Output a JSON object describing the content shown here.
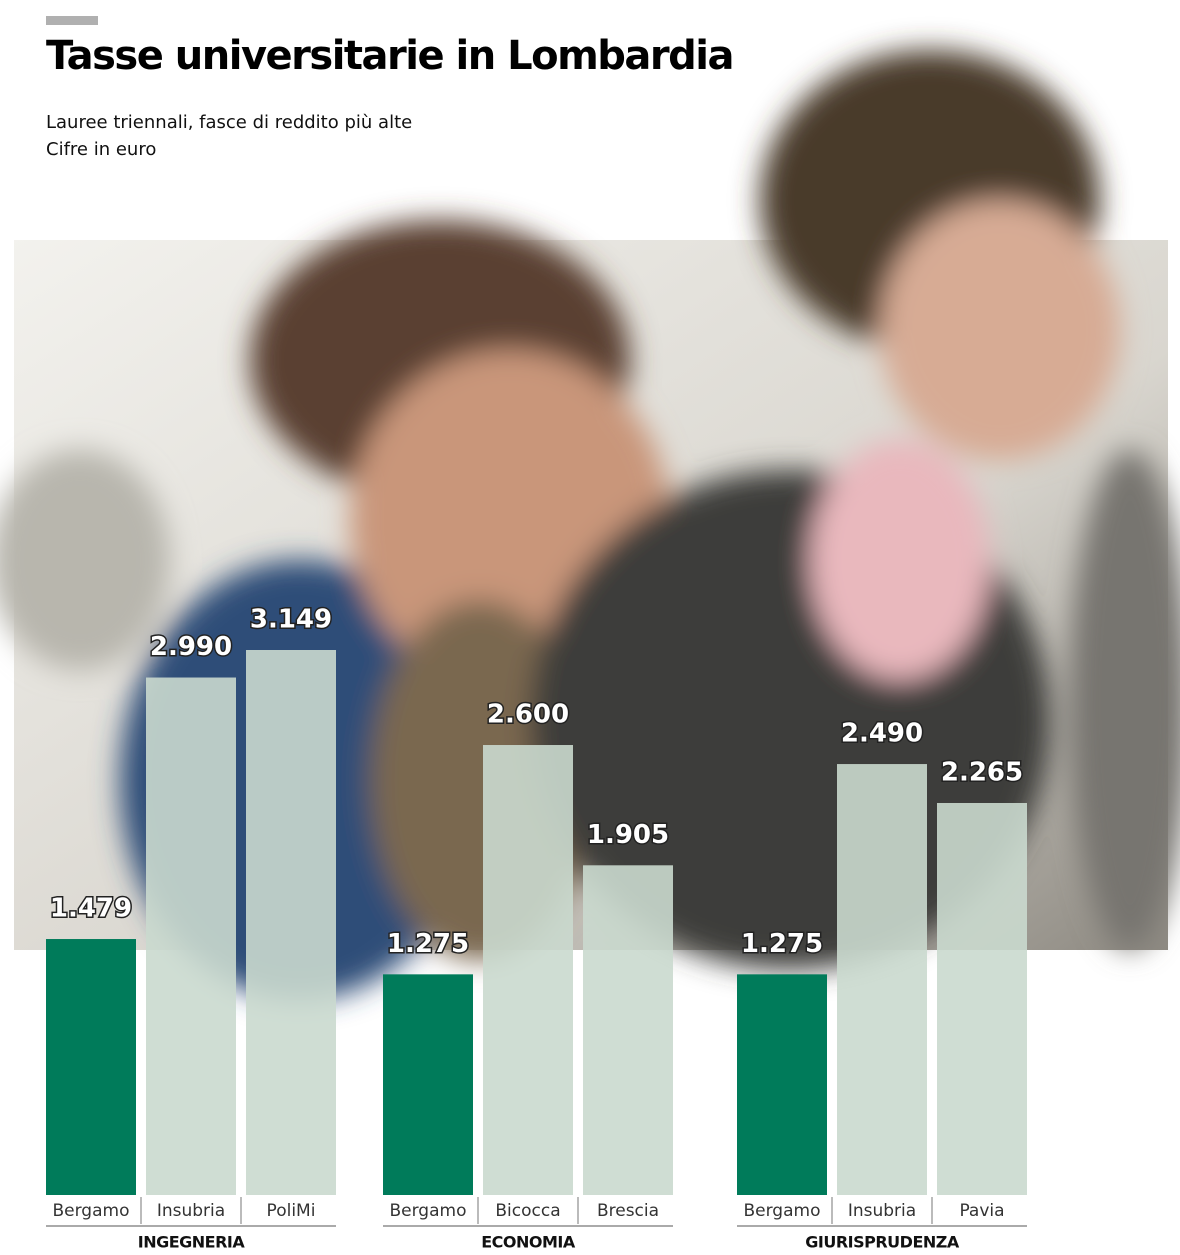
{
  "chart_data": {
    "type": "bar",
    "title": "Tasse universitarie in Lombardia",
    "subtitle": [
      "Lauree triennali, fasce di reddito più alte",
      "Cifre in  euro"
    ],
    "groups": [
      {
        "name": "INGEGNERIA",
        "categories": [
          "Bergamo",
          "Insubria",
          "PoliMi"
        ],
        "values": [
          1479,
          2990,
          3149
        ],
        "value_labels": [
          "1.479",
          "2.990",
          "3.149"
        ],
        "colors": [
          "#007b5a",
          "#cad9ce",
          "#cad9ce"
        ]
      },
      {
        "name": "ECONOMIA",
        "categories": [
          "Bergamo",
          "Bicocca",
          "Brescia"
        ],
        "values": [
          1275,
          2600,
          1905
        ],
        "value_labels": [
          "1.275",
          "2.600",
          "1.905"
        ],
        "colors": [
          "#007b5a",
          "#cad9ce",
          "#cad9ce"
        ]
      },
      {
        "name": "GIURISPRUDENZA",
        "categories": [
          "Bergamo",
          "Insubria",
          "Pavia"
        ],
        "values": [
          1275,
          2490,
          2265
        ],
        "value_labels": [
          "1.275",
          "2.490",
          "2.265"
        ],
        "colors": [
          "#007b5a",
          "#cad9ce",
          "#cad9ce"
        ]
      }
    ]
  }
}
